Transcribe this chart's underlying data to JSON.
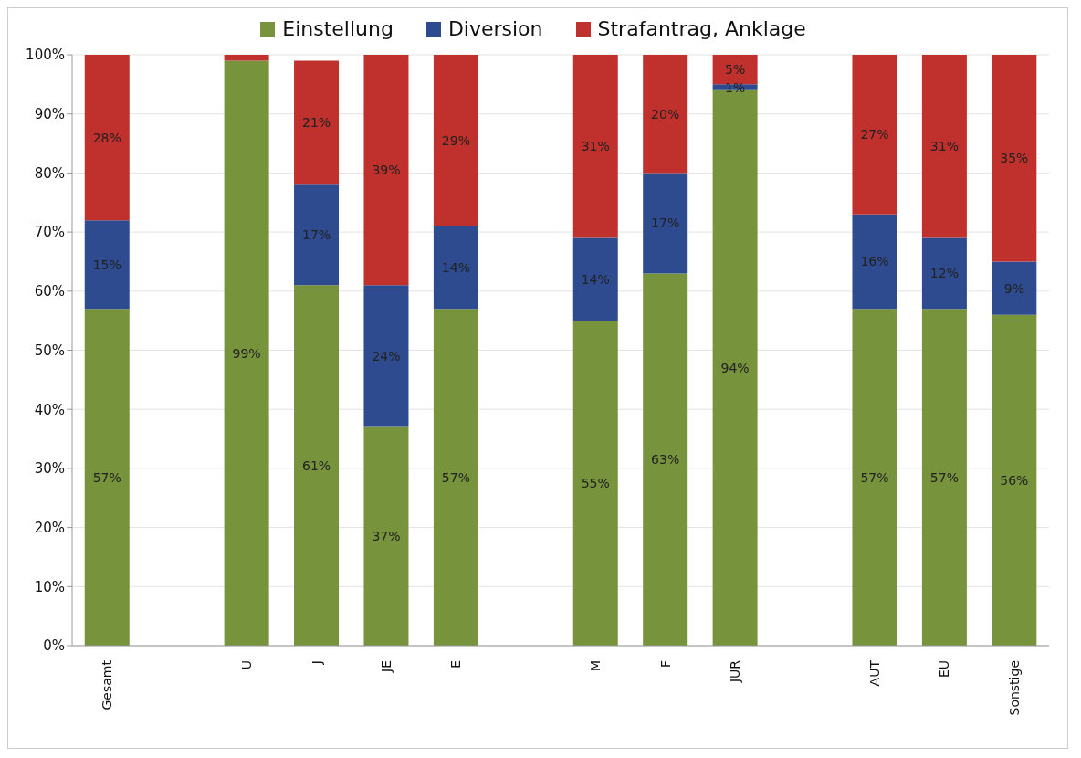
{
  "chart_data": {
    "type": "bar",
    "stacked": true,
    "categories": [
      "Gesamt",
      null,
      "U",
      "J",
      "JE",
      "E",
      null,
      "M",
      "F",
      "JUR",
      null,
      "AUT",
      "EU",
      "Sonstige"
    ],
    "series": [
      {
        "name": "Einstellung",
        "color": "#77933c",
        "values": [
          57,
          null,
          99,
          61,
          37,
          57,
          null,
          55,
          63,
          94,
          null,
          57,
          57,
          56
        ],
        "value_labels": [
          "57%",
          null,
          "99%",
          "61%",
          "37%",
          "57%",
          null,
          "55%",
          "63%",
          "94%",
          null,
          "57%",
          "57%",
          "56%"
        ]
      },
      {
        "name": "Diversion",
        "color": "#2f4b8f",
        "values": [
          15,
          null,
          0,
          17,
          24,
          14,
          null,
          14,
          17,
          1,
          null,
          16,
          12,
          9
        ],
        "value_labels": [
          "15%",
          null,
          null,
          "17%",
          "24%",
          "14%",
          null,
          "14%",
          "17%",
          "1%",
          null,
          "16%",
          "12%",
          "9%"
        ]
      },
      {
        "name": "Strafantrag, Anklage",
        "color": "#c0302c",
        "values": [
          28,
          null,
          1,
          21,
          39,
          29,
          null,
          31,
          20,
          5,
          null,
          27,
          31,
          35
        ],
        "value_labels": [
          "28%",
          null,
          null,
          "21%",
          "39%",
          "29%",
          null,
          "31%",
          "20%",
          "5%",
          null,
          "27%",
          "31%",
          "35%"
        ]
      }
    ],
    "ylim": [
      0,
      100
    ],
    "yticks": [
      {
        "value": 0,
        "label": "0%"
      },
      {
        "value": 10,
        "label": "10%"
      },
      {
        "value": 20,
        "label": "20%"
      },
      {
        "value": 30,
        "label": "30%"
      },
      {
        "value": 40,
        "label": "40%"
      },
      {
        "value": 50,
        "label": "50%"
      },
      {
        "value": 60,
        "label": "60%"
      },
      {
        "value": 70,
        "label": "70%"
      },
      {
        "value": 80,
        "label": "80%"
      },
      {
        "value": 90,
        "label": "90%"
      },
      {
        "value": 100,
        "label": "100%"
      }
    ],
    "grid": "y",
    "legend": "top"
  }
}
